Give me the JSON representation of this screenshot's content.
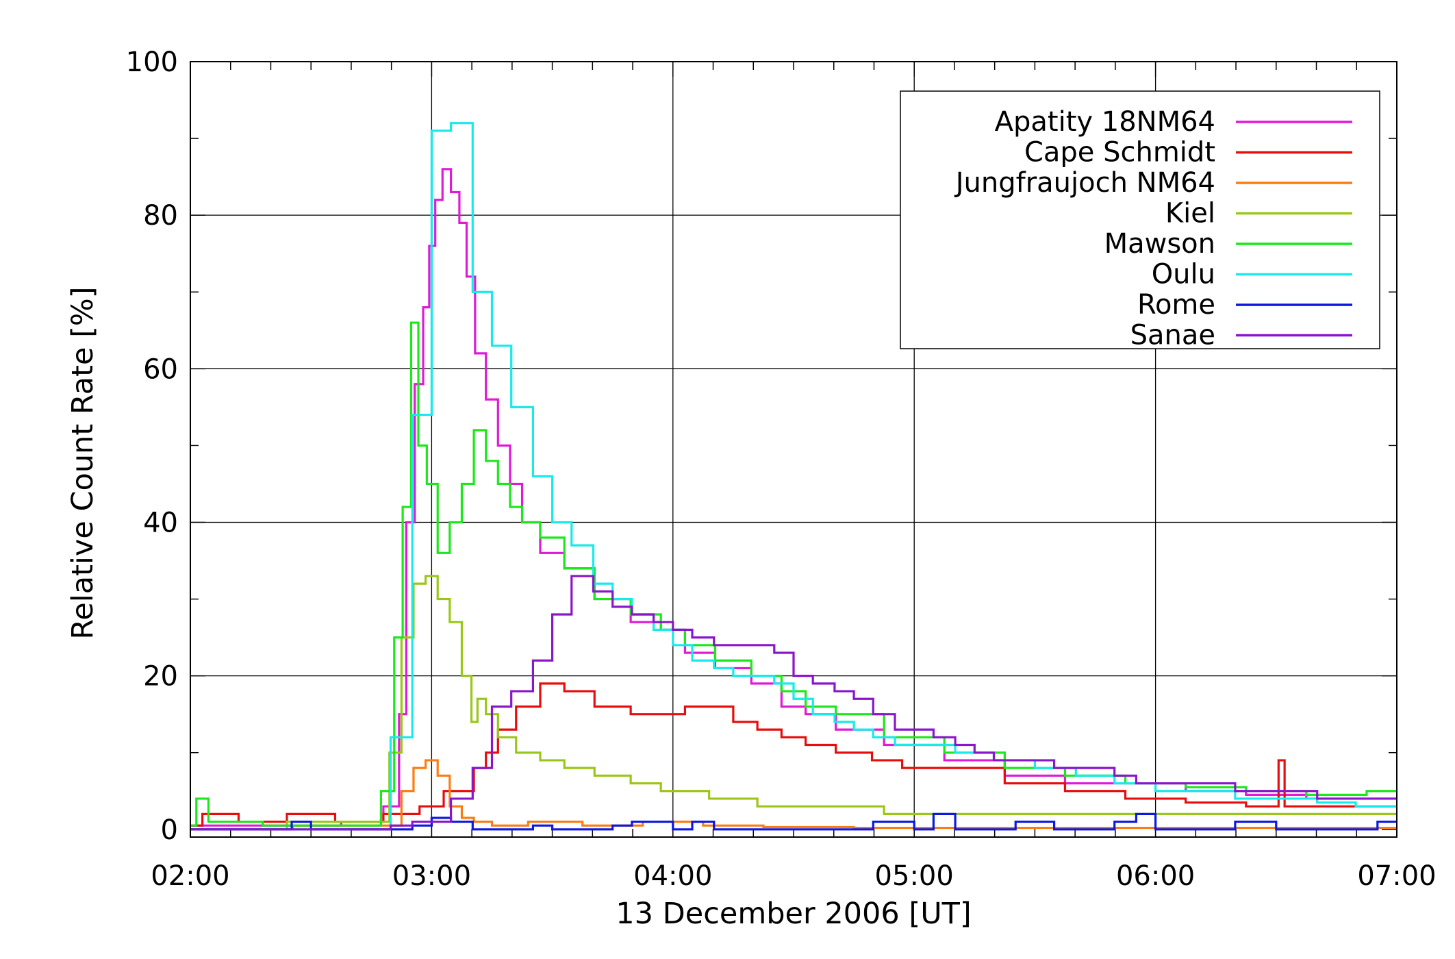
{
  "chart_data": {
    "type": "line",
    "title": "",
    "xlabel": "13 December 2006 [UT]",
    "ylabel": "Relative Count Rate [%]",
    "x_unit": "UT hours",
    "xlim": [
      2.0,
      7.0
    ],
    "ylim": [
      -1,
      100
    ],
    "x_ticks": [
      2,
      3,
      4,
      5,
      6,
      7
    ],
    "x_tick_labels": [
      "02:00",
      "03:00",
      "04:00",
      "05:00",
      "06:00",
      "07:00"
    ],
    "y_ticks": [
      0,
      20,
      40,
      60,
      80,
      100
    ],
    "y_tick_labels": [
      "0",
      "20",
      "40",
      "60",
      "80",
      "100"
    ],
    "grid": true,
    "legend_position": "top-right",
    "series": [
      {
        "name": "Apatity 18NM64",
        "color": "#e01ad7",
        "step": "mid",
        "points": [
          [
            2.0,
            0.5
          ],
          [
            2.5,
            0.5
          ],
          [
            2.75,
            1.0
          ],
          [
            2.85,
            3
          ],
          [
            2.88,
            15
          ],
          [
            2.91,
            40
          ],
          [
            2.95,
            58
          ],
          [
            2.98,
            68
          ],
          [
            3.0,
            76
          ],
          [
            3.03,
            82
          ],
          [
            3.06,
            86
          ],
          [
            3.1,
            83
          ],
          [
            3.13,
            79
          ],
          [
            3.16,
            72
          ],
          [
            3.2,
            62
          ],
          [
            3.25,
            56
          ],
          [
            3.3,
            50
          ],
          [
            3.35,
            45
          ],
          [
            3.4,
            40
          ],
          [
            3.5,
            36
          ],
          [
            3.6,
            34
          ],
          [
            3.75,
            30
          ],
          [
            3.9,
            27
          ],
          [
            4.0,
            26
          ],
          [
            4.1,
            23
          ],
          [
            4.25,
            21
          ],
          [
            4.4,
            19
          ],
          [
            4.5,
            16
          ],
          [
            4.6,
            15
          ],
          [
            4.75,
            13
          ],
          [
            5.0,
            11
          ],
          [
            5.25,
            9
          ],
          [
            5.5,
            7
          ],
          [
            5.75,
            6
          ],
          [
            6.0,
            6
          ],
          [
            6.25,
            5
          ],
          [
            6.5,
            4.5
          ],
          [
            6.75,
            4
          ],
          [
            7.0,
            4
          ]
        ]
      },
      {
        "name": "Cape Schmidt",
        "color": "#e80c0c",
        "step": "mid",
        "points": [
          [
            2.0,
            0.5
          ],
          [
            2.1,
            2
          ],
          [
            2.3,
            1
          ],
          [
            2.5,
            2
          ],
          [
            2.7,
            1
          ],
          [
            2.9,
            2
          ],
          [
            3.0,
            3
          ],
          [
            3.1,
            5
          ],
          [
            3.15,
            5
          ],
          [
            3.2,
            8
          ],
          [
            3.25,
            10
          ],
          [
            3.3,
            13
          ],
          [
            3.4,
            16
          ],
          [
            3.5,
            19
          ],
          [
            3.6,
            18
          ],
          [
            3.75,
            16
          ],
          [
            3.9,
            15
          ],
          [
            4.0,
            15
          ],
          [
            4.1,
            16
          ],
          [
            4.2,
            16
          ],
          [
            4.3,
            14
          ],
          [
            4.4,
            13
          ],
          [
            4.5,
            12
          ],
          [
            4.6,
            11
          ],
          [
            4.75,
            10
          ],
          [
            4.9,
            9
          ],
          [
            5.0,
            8
          ],
          [
            5.25,
            8
          ],
          [
            5.5,
            6
          ],
          [
            5.75,
            5
          ],
          [
            6.0,
            4
          ],
          [
            6.25,
            3.5
          ],
          [
            6.5,
            3
          ],
          [
            6.52,
            9
          ],
          [
            6.55,
            3
          ],
          [
            6.75,
            3
          ],
          [
            7.0,
            3
          ]
        ]
      },
      {
        "name": "Jungfraujoch NM64",
        "color": "#fa7d12",
        "step": "mid",
        "points": [
          [
            2.0,
            0
          ],
          [
            2.85,
            0.5
          ],
          [
            2.9,
            5
          ],
          [
            2.95,
            8
          ],
          [
            3.0,
            9
          ],
          [
            3.05,
            7
          ],
          [
            3.1,
            3
          ],
          [
            3.15,
            1.5
          ],
          [
            3.2,
            1
          ],
          [
            3.3,
            0.5
          ],
          [
            3.5,
            1
          ],
          [
            3.75,
            0.5
          ],
          [
            4.0,
            1
          ],
          [
            4.25,
            0.5
          ],
          [
            4.5,
            0.3
          ],
          [
            5.0,
            0.2
          ],
          [
            5.5,
            0.2
          ],
          [
            6.0,
            0.2
          ],
          [
            7.0,
            0.2
          ]
        ]
      },
      {
        "name": "Kiel",
        "color": "#9ac717",
        "step": "mid",
        "points": [
          [
            2.0,
            0
          ],
          [
            2.8,
            1
          ],
          [
            2.85,
            10
          ],
          [
            2.9,
            25
          ],
          [
            2.95,
            32
          ],
          [
            3.0,
            33
          ],
          [
            3.05,
            30
          ],
          [
            3.1,
            27
          ],
          [
            3.15,
            20
          ],
          [
            3.18,
            14
          ],
          [
            3.2,
            17
          ],
          [
            3.25,
            15
          ],
          [
            3.3,
            12
          ],
          [
            3.4,
            10
          ],
          [
            3.5,
            9
          ],
          [
            3.6,
            8
          ],
          [
            3.75,
            7
          ],
          [
            3.9,
            6
          ],
          [
            4.0,
            5
          ],
          [
            4.1,
            5
          ],
          [
            4.2,
            4
          ],
          [
            4.3,
            4
          ],
          [
            4.4,
            3
          ],
          [
            4.5,
            3
          ],
          [
            4.75,
            3
          ],
          [
            5.0,
            2
          ],
          [
            5.25,
            2
          ],
          [
            5.5,
            2
          ],
          [
            6.0,
            2
          ],
          [
            6.5,
            2
          ],
          [
            7.0,
            2
          ]
        ]
      },
      {
        "name": "Mawson",
        "color": "#1be81b",
        "step": "mid",
        "points": [
          [
            2.0,
            0.5
          ],
          [
            2.05,
            4
          ],
          [
            2.1,
            1
          ],
          [
            2.5,
            0.5
          ],
          [
            2.75,
            0.5
          ],
          [
            2.83,
            5
          ],
          [
            2.86,
            25
          ],
          [
            2.9,
            42
          ],
          [
            2.93,
            66
          ],
          [
            2.96,
            50
          ],
          [
            3.0,
            45
          ],
          [
            3.05,
            36
          ],
          [
            3.1,
            40
          ],
          [
            3.15,
            45
          ],
          [
            3.2,
            52
          ],
          [
            3.25,
            48
          ],
          [
            3.3,
            45
          ],
          [
            3.35,
            42
          ],
          [
            3.4,
            40
          ],
          [
            3.5,
            38
          ],
          [
            3.6,
            34
          ],
          [
            3.75,
            30
          ],
          [
            3.9,
            28
          ],
          [
            4.0,
            26
          ],
          [
            4.1,
            24
          ],
          [
            4.25,
            22
          ],
          [
            4.4,
            20
          ],
          [
            4.5,
            18
          ],
          [
            4.6,
            16
          ],
          [
            4.75,
            15
          ],
          [
            5.0,
            12
          ],
          [
            5.25,
            10
          ],
          [
            5.5,
            8
          ],
          [
            5.75,
            7
          ],
          [
            6.0,
            6
          ],
          [
            6.25,
            5.5
          ],
          [
            6.5,
            5
          ],
          [
            6.75,
            4.5
          ],
          [
            7.0,
            5
          ]
        ]
      },
      {
        "name": "Oulu",
        "color": "#17eaea",
        "step": "post",
        "points": [
          [
            2.0,
            0
          ],
          [
            2.5,
            0
          ],
          [
            2.83,
            12
          ],
          [
            2.92,
            54
          ],
          [
            3.0,
            91
          ],
          [
            3.08,
            92
          ],
          [
            3.17,
            70
          ],
          [
            3.25,
            63
          ],
          [
            3.33,
            55
          ],
          [
            3.42,
            46
          ],
          [
            3.5,
            40
          ],
          [
            3.58,
            37
          ],
          [
            3.67,
            32
          ],
          [
            3.75,
            30
          ],
          [
            3.83,
            28
          ],
          [
            3.92,
            26
          ],
          [
            4.0,
            24
          ],
          [
            4.08,
            22
          ],
          [
            4.17,
            21
          ],
          [
            4.25,
            20
          ],
          [
            4.33,
            20
          ],
          [
            4.42,
            19
          ],
          [
            4.5,
            17
          ],
          [
            4.58,
            15
          ],
          [
            4.67,
            14
          ],
          [
            4.75,
            13
          ],
          [
            4.83,
            12
          ],
          [
            4.92,
            11
          ],
          [
            5.0,
            11
          ],
          [
            5.17,
            10
          ],
          [
            5.33,
            9
          ],
          [
            5.5,
            8
          ],
          [
            5.67,
            7
          ],
          [
            5.83,
            6
          ],
          [
            6.0,
            5
          ],
          [
            6.17,
            5
          ],
          [
            6.33,
            4
          ],
          [
            6.5,
            4
          ],
          [
            6.67,
            3.5
          ],
          [
            6.83,
            3
          ],
          [
            7.0,
            3
          ]
        ]
      },
      {
        "name": "Rome",
        "color": "#0d18e0",
        "step": "post",
        "points": [
          [
            2.0,
            0
          ],
          [
            2.42,
            1
          ],
          [
            2.5,
            0
          ],
          [
            2.75,
            0
          ],
          [
            2.92,
            0.5
          ],
          [
            3.0,
            1.5
          ],
          [
            3.08,
            1
          ],
          [
            3.17,
            0
          ],
          [
            3.42,
            0.5
          ],
          [
            3.5,
            0
          ],
          [
            3.75,
            0.5
          ],
          [
            3.83,
            1
          ],
          [
            4.0,
            0
          ],
          [
            4.08,
            1
          ],
          [
            4.17,
            0
          ],
          [
            4.5,
            0
          ],
          [
            4.75,
            0
          ],
          [
            4.83,
            1
          ],
          [
            5.0,
            0
          ],
          [
            5.08,
            2
          ],
          [
            5.17,
            0
          ],
          [
            5.42,
            1
          ],
          [
            5.5,
            1
          ],
          [
            5.58,
            0
          ],
          [
            5.83,
            1
          ],
          [
            5.92,
            2
          ],
          [
            6.0,
            0
          ],
          [
            6.17,
            0
          ],
          [
            6.33,
            1
          ],
          [
            6.5,
            0
          ],
          [
            6.83,
            0
          ],
          [
            6.92,
            1
          ],
          [
            7.0,
            1
          ]
        ]
      },
      {
        "name": "Sanae",
        "color": "#8a16cc",
        "step": "post",
        "points": [
          [
            2.0,
            0
          ],
          [
            2.5,
            0
          ],
          [
            2.83,
            0.5
          ],
          [
            2.92,
            1
          ],
          [
            3.0,
            1
          ],
          [
            3.08,
            4
          ],
          [
            3.17,
            8
          ],
          [
            3.25,
            16
          ],
          [
            3.33,
            18
          ],
          [
            3.42,
            22
          ],
          [
            3.5,
            28
          ],
          [
            3.58,
            33
          ],
          [
            3.67,
            31
          ],
          [
            3.75,
            29
          ],
          [
            3.83,
            28
          ],
          [
            3.92,
            27
          ],
          [
            4.0,
            26
          ],
          [
            4.08,
            25
          ],
          [
            4.17,
            24
          ],
          [
            4.25,
            24
          ],
          [
            4.33,
            24
          ],
          [
            4.42,
            23
          ],
          [
            4.5,
            20
          ],
          [
            4.58,
            19
          ],
          [
            4.67,
            18
          ],
          [
            4.75,
            17
          ],
          [
            4.83,
            15
          ],
          [
            4.92,
            13
          ],
          [
            5.0,
            13
          ],
          [
            5.08,
            12
          ],
          [
            5.17,
            11
          ],
          [
            5.25,
            10
          ],
          [
            5.33,
            9
          ],
          [
            5.5,
            9
          ],
          [
            5.58,
            8
          ],
          [
            5.67,
            8
          ],
          [
            5.75,
            8
          ],
          [
            5.83,
            7
          ],
          [
            5.92,
            6
          ],
          [
            6.0,
            6
          ],
          [
            6.08,
            6
          ],
          [
            6.17,
            6
          ],
          [
            6.33,
            5
          ],
          [
            6.5,
            5
          ],
          [
            6.67,
            4
          ],
          [
            6.83,
            4
          ],
          [
            7.0,
            4
          ]
        ]
      }
    ]
  }
}
